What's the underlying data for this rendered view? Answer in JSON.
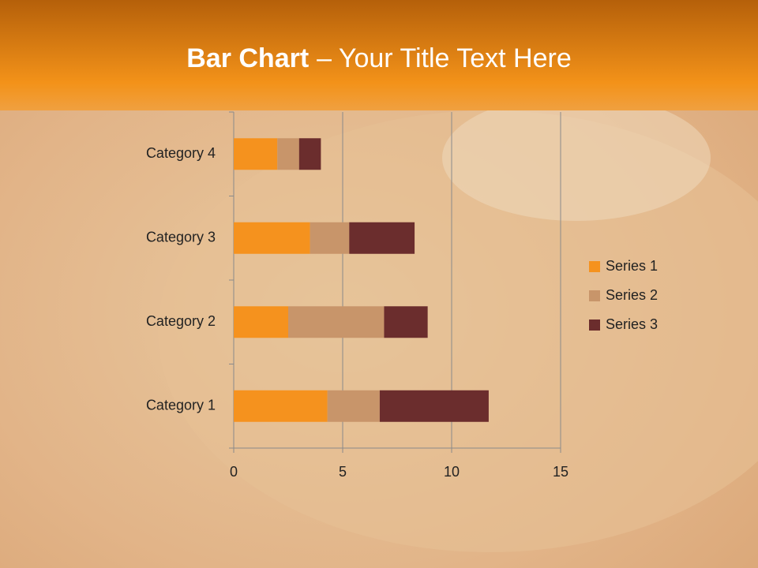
{
  "chart_data": {
    "type": "stacked-bar-horizontal",
    "title_parts": [
      "Bar Chart",
      "– Your Title Text Here"
    ],
    "categories": [
      "Category 1",
      "Category 2",
      "Category 3",
      "Category 4"
    ],
    "series": [
      {
        "name": "Series 1",
        "color": "#f5921e",
        "values": [
          4.3,
          2.5,
          3.5,
          2
        ]
      },
      {
        "name": "Series 2",
        "color": "#c8956a",
        "values": [
          2.4,
          4.4,
          1.8,
          1
        ]
      },
      {
        "name": "Series 3",
        "color": "#6b2d2d",
        "values": [
          5,
          2,
          3,
          1
        ]
      }
    ],
    "xlim": [
      0,
      15
    ],
    "xticks": [
      0,
      5,
      10,
      15
    ],
    "grid": true,
    "legend": "right"
  }
}
